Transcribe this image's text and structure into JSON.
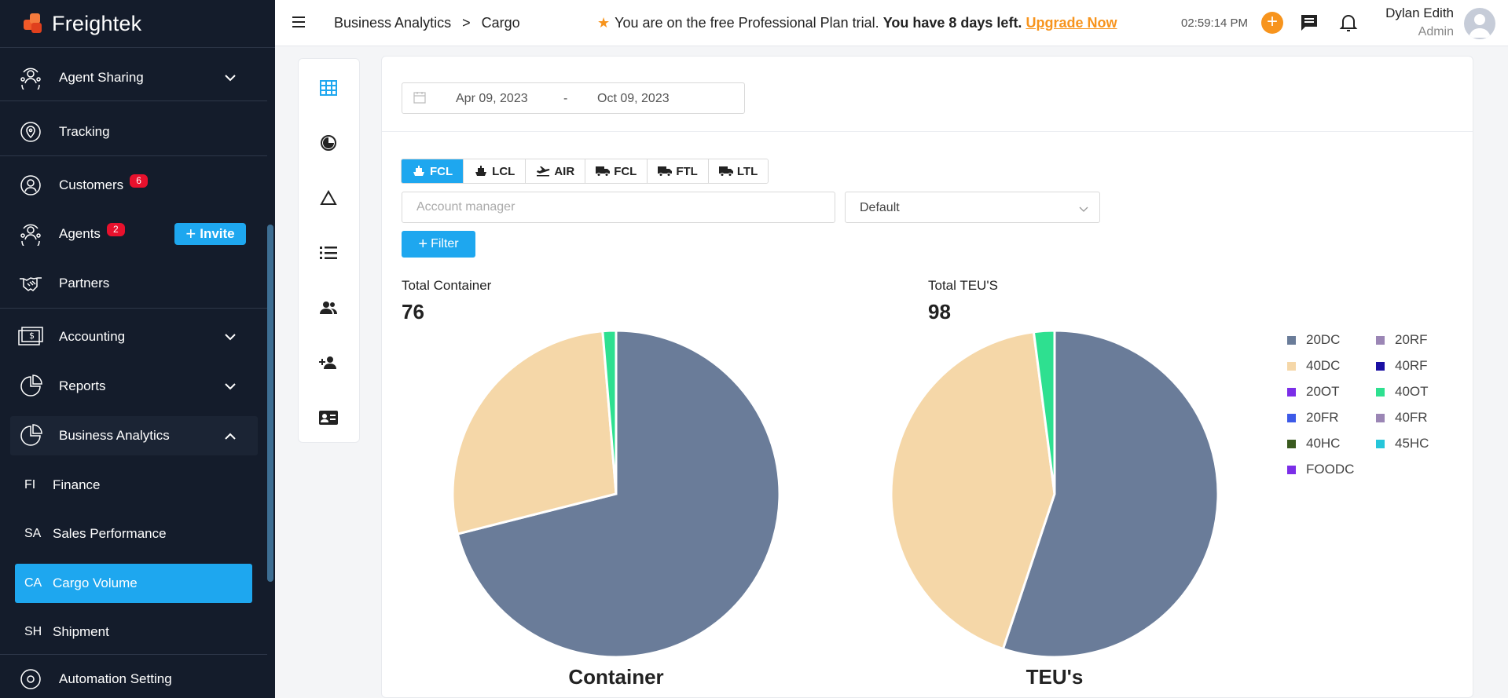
{
  "brand": {
    "name": "Freightek"
  },
  "sidebar": {
    "items": [
      {
        "label": "Agent Sharing",
        "icon": "agent-sharing-icon"
      },
      {
        "label": "Tracking",
        "icon": "location-pin-icon"
      },
      {
        "label": "Customers",
        "icon": "customers-icon",
        "badge": "6"
      },
      {
        "label": "Agents",
        "icon": "agents-icon",
        "badge": "2",
        "action": "Invite"
      },
      {
        "label": "Partners",
        "icon": "handshake-icon"
      },
      {
        "label": "Accounting",
        "icon": "money-icon"
      },
      {
        "label": "Reports",
        "icon": "pie-chart-icon"
      },
      {
        "label": "Business Analytics",
        "icon": "pie-chart-icon"
      },
      {
        "label": "Automation Setting",
        "icon": "gear-icon"
      }
    ],
    "sub_items": [
      {
        "abbr": "FI",
        "label": "Finance"
      },
      {
        "abbr": "SA",
        "label": "Sales Performance"
      },
      {
        "abbr": "CA",
        "label": "Cargo Volume"
      },
      {
        "abbr": "SH",
        "label": "Shipment"
      }
    ]
  },
  "header": {
    "breadcrumb": [
      "Business Analytics",
      ">",
      "Cargo"
    ],
    "trial_text": "You are on the free Professional Plan trial.",
    "trial_bold": "You have 8 days left.",
    "upgrade_label": "Upgrade Now",
    "clock": "02:59:14 PM",
    "user_name": "Dylan Edith",
    "user_role": "Admin"
  },
  "filters": {
    "date_from": "Apr 09, 2023",
    "date_sep": "-",
    "date_to": "Oct 09, 2023",
    "modes": [
      {
        "label": "FCL",
        "icon": "ship-icon",
        "active": true
      },
      {
        "label": "LCL",
        "icon": "ship-icon",
        "active": false
      },
      {
        "label": "AIR",
        "icon": "plane-icon",
        "active": false
      },
      {
        "label": "FCL",
        "icon": "truck-icon",
        "active": false
      },
      {
        "label": "FTL",
        "icon": "truck-icon",
        "active": false
      },
      {
        "label": "LTL",
        "icon": "truck-icon",
        "active": false
      }
    ],
    "account_placeholder": "Account manager",
    "select_value": "Default",
    "filter_label": "Filter"
  },
  "stats": {
    "container_label": "Total Container",
    "container_value": "76",
    "teu_label": "Total TEU'S",
    "teu_value": "98"
  },
  "chart_data": [
    {
      "type": "pie",
      "title": "Container",
      "categories": [
        "20DC",
        "40DC",
        "40OT"
      ],
      "values": [
        54,
        21,
        1
      ],
      "colors": [
        "#6a7c99",
        "#f5d7a8",
        "#2ee090"
      ]
    },
    {
      "type": "pie",
      "title": "TEU's",
      "categories": [
        "20DC",
        "40DC",
        "40OT"
      ],
      "values": [
        54,
        42,
        2
      ],
      "colors": [
        "#6a7c99",
        "#f5d7a8",
        "#2ee090"
      ]
    }
  ],
  "legend": [
    {
      "label": "20DC",
      "color": "#6a7c99"
    },
    {
      "label": "20RF",
      "color": "#9b86b5"
    },
    {
      "label": "40DC",
      "color": "#f5d7a8"
    },
    {
      "label": "40RF",
      "color": "#1a0fa3"
    },
    {
      "label": "20OT",
      "color": "#7b2ee8"
    },
    {
      "label": "40OT",
      "color": "#2ee090"
    },
    {
      "label": "20FR",
      "color": "#3d5ae8"
    },
    {
      "label": "40FR",
      "color": "#9b86b5"
    },
    {
      "label": "40HC",
      "color": "#3a5a1f"
    },
    {
      "label": "45HC",
      "color": "#26c6da"
    },
    {
      "label": "FOODC",
      "color": "#7b2ee8"
    }
  ]
}
